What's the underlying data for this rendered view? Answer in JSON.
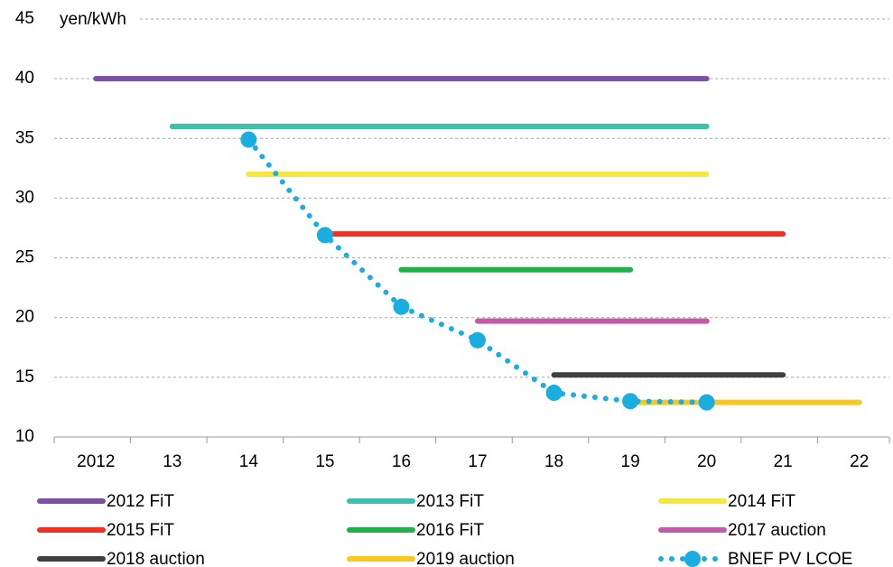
{
  "chart_data": {
    "type": "line",
    "y_unit_label": "yen/kWh",
    "categories": [
      "2012",
      "13",
      "14",
      "15",
      "16",
      "17",
      "18",
      "19",
      "20",
      "21",
      "22"
    ],
    "ylim": [
      10,
      45
    ],
    "yticks": [
      10,
      15,
      20,
      25,
      30,
      35,
      40,
      45
    ],
    "grid": true,
    "legend": "bottom",
    "series": [
      {
        "name": "2012 FiT",
        "color": "#7b52a1",
        "values": [
          40,
          40,
          40,
          40,
          40,
          40,
          40,
          40,
          40,
          null,
          null
        ]
      },
      {
        "name": "2013 FiT",
        "color": "#3dbfa9",
        "values": [
          null,
          36,
          36,
          36,
          36,
          36,
          36,
          36,
          36,
          null,
          null
        ]
      },
      {
        "name": "2014 FiT",
        "color": "#f5e642",
        "values": [
          null,
          null,
          32,
          32,
          32,
          32,
          32,
          32,
          32,
          null,
          null
        ]
      },
      {
        "name": "2015 FiT",
        "color": "#ee3124",
        "values": [
          null,
          null,
          null,
          27,
          27,
          27,
          27,
          27,
          27,
          27,
          null
        ]
      },
      {
        "name": "2016 FiT",
        "color": "#21b04b",
        "values": [
          null,
          null,
          null,
          null,
          24,
          24,
          24,
          24,
          null,
          null,
          null
        ]
      },
      {
        "name": "2017 auction",
        "color": "#c05ca8",
        "values": [
          null,
          null,
          null,
          null,
          null,
          19.7,
          19.7,
          19.7,
          19.7,
          null,
          null
        ]
      },
      {
        "name": "2018 auction",
        "color": "#404040",
        "values": [
          null,
          null,
          null,
          null,
          null,
          null,
          15.2,
          15.2,
          15.2,
          15.2,
          null
        ]
      },
      {
        "name": "2019 auction",
        "color": "#fcc71c",
        "values": [
          null,
          null,
          null,
          null,
          null,
          null,
          null,
          12.9,
          12.9,
          12.9,
          12.9
        ]
      },
      {
        "name": "BNEF PV LCOE",
        "color": "#1aaddf",
        "style": "dotted-markers",
        "values": [
          null,
          null,
          34.9,
          26.9,
          20.9,
          18.1,
          13.7,
          13.0,
          12.9,
          null,
          null
        ]
      }
    ]
  }
}
